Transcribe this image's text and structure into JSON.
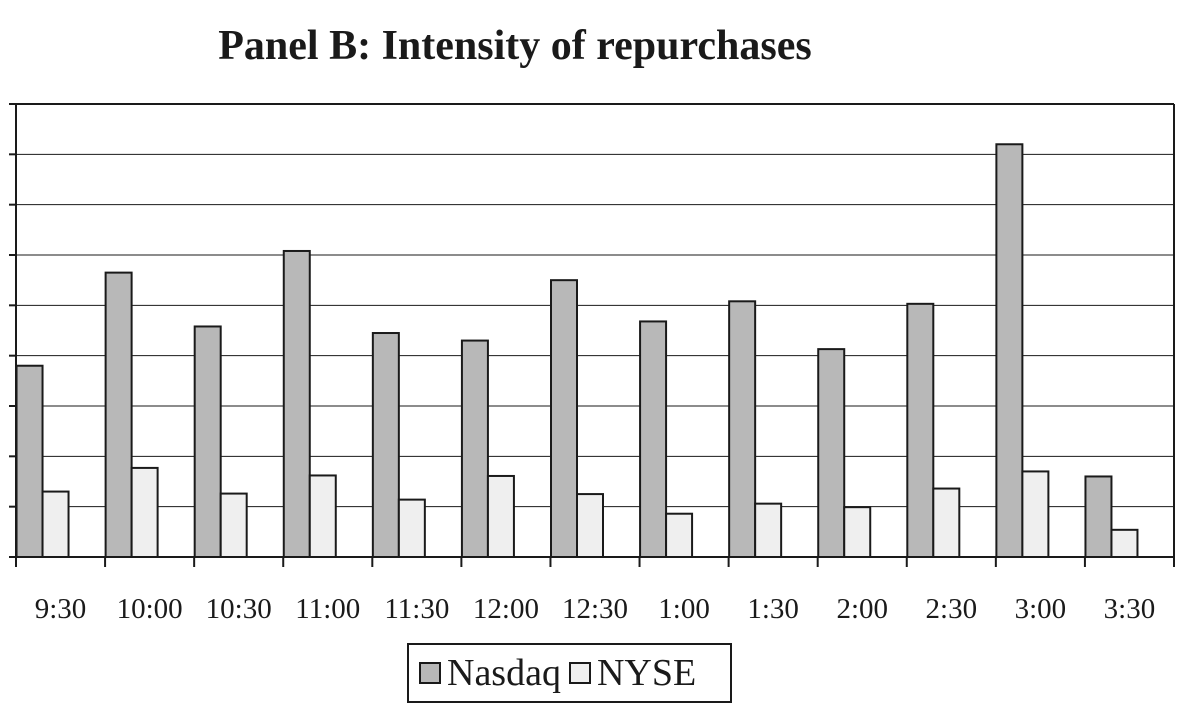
{
  "chart_data": {
    "type": "bar",
    "title": "Panel B: Intensity of repurchases",
    "xlabel": "",
    "ylabel": "",
    "categories": [
      "9:30",
      "10:00",
      "10:30",
      "11:00",
      "11:30",
      "12:00",
      "12:30",
      "1:00",
      "1:30",
      "2:00",
      "2:30",
      "3:00",
      "3:30"
    ],
    "series": [
      {
        "name": "Nasdaq",
        "color": "#b8b8b8",
        "values": [
          3.8,
          5.65,
          4.58,
          6.08,
          4.45,
          4.3,
          5.5,
          4.68,
          5.08,
          4.13,
          5.03,
          8.2,
          1.6
        ]
      },
      {
        "name": "NYSE",
        "color": "#efefef",
        "values": [
          1.3,
          1.77,
          1.26,
          1.62,
          1.14,
          1.61,
          1.25,
          0.86,
          1.06,
          0.99,
          1.36,
          1.7,
          0.54
        ]
      }
    ],
    "ylim": [
      0,
      9
    ],
    "y_tick_labels_shown": false,
    "grid": true,
    "legend": "bottom-center"
  },
  "colors": {
    "axis": "#1a1a1a",
    "grid": "#1a1a1a",
    "bar_outline": "#1a1a1a"
  }
}
